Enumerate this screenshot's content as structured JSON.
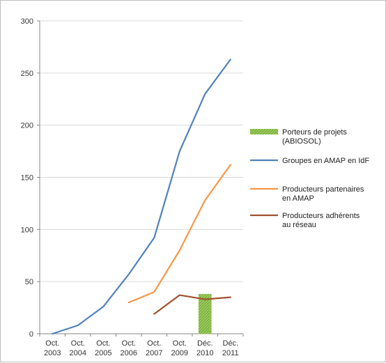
{
  "chart_data": {
    "type": "line",
    "title": "",
    "xlabel": "",
    "ylabel": "",
    "ylim": [
      0,
      300
    ],
    "yticks": [
      0,
      50,
      100,
      150,
      200,
      250,
      300
    ],
    "categories": [
      [
        "Oct.",
        "2003"
      ],
      [
        "Oct.",
        "2004"
      ],
      [
        "Oct.",
        "2005"
      ],
      [
        "Oct.",
        "2006"
      ],
      [
        "Oct.",
        "2007"
      ],
      [
        "Oct.",
        "2009"
      ],
      [
        "Déc.",
        "2010"
      ],
      [
        "Déc.",
        "2011"
      ]
    ],
    "grid": "horizontal",
    "legend_position": "right",
    "series": [
      {
        "name": [
          "Porteurs de projets",
          "(ABIOSOL)"
        ],
        "kind": "bar",
        "color": "#8fc152",
        "values": [
          null,
          null,
          null,
          null,
          null,
          null,
          38,
          null
        ]
      },
      {
        "name": [
          "Groupes en AMAP en IdF"
        ],
        "kind": "line",
        "color": "#4f81bd",
        "values": [
          0,
          8,
          26,
          57,
          92,
          175,
          230,
          263
        ]
      },
      {
        "name": [
          "Producteurs partenaires",
          "en AMAP"
        ],
        "kind": "line",
        "color": "#f79646",
        "values": [
          null,
          null,
          null,
          30,
          40,
          80,
          128,
          162
        ]
      },
      {
        "name": [
          "Producteurs adhérents",
          "au réseau"
        ],
        "kind": "line",
        "color": "#a0522d",
        "values": [
          null,
          null,
          null,
          null,
          19,
          37,
          33,
          35
        ]
      }
    ]
  }
}
